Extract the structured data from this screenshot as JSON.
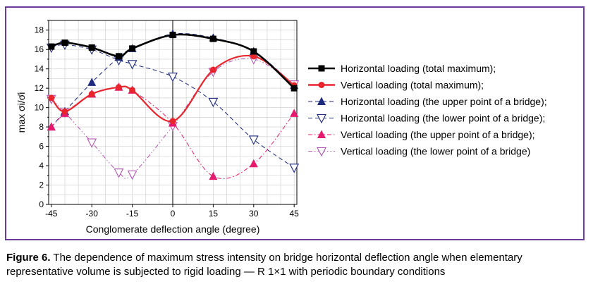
{
  "chart_data": {
    "type": "line",
    "xlabel": "Conglomerate deflection angle (degree)",
    "ylabel": "max σi/σ̄i",
    "xlim": [
      -46,
      46
    ],
    "ylim": [
      0,
      19
    ],
    "xticks": [
      -45,
      -30,
      -15,
      0,
      15,
      30,
      45
    ],
    "yticks": [
      0,
      2,
      4,
      6,
      8,
      10,
      12,
      14,
      16,
      18
    ],
    "grid": true,
    "legend_position": "right",
    "series": [
      {
        "name": "Horizontal loading (total maximum);",
        "color": "#000000",
        "marker": "square",
        "line": "solid",
        "x": [
          -45,
          -40,
          -30,
          -20,
          -15,
          0,
          15,
          30,
          45
        ],
        "y": [
          16.3,
          16.7,
          16.2,
          15.3,
          16.1,
          17.5,
          17.1,
          15.8,
          12.0
        ]
      },
      {
        "name": "Vertical loading (total maximum);",
        "color": "#e8242c",
        "marker": "circle",
        "line": "solid",
        "x": [
          -45,
          -40,
          -30,
          -20,
          -15,
          0,
          15,
          30,
          45
        ],
        "y": [
          11.0,
          9.6,
          11.4,
          12.1,
          11.8,
          8.6,
          13.9,
          15.3,
          12.3
        ]
      },
      {
        "name": "Horizontal loading (the upper point of a bridge);",
        "color": "#1e2a7e",
        "marker": "triangle-up",
        "line": "dashed",
        "x": [
          -45,
          -40,
          -30,
          -20,
          -15,
          0,
          15,
          30,
          45
        ],
        "y": [
          8.0,
          9.6,
          12.6,
          15.2,
          16.1,
          17.6,
          17.2,
          15.8,
          12.3
        ]
      },
      {
        "name": "Horizontal loading (the lower point of a bridge);",
        "color": "#1e2a7e",
        "marker": "triangle-down",
        "line": "dashed",
        "x": [
          -45,
          -40,
          -30,
          -20,
          -15,
          0,
          15,
          30,
          45
        ],
        "y": [
          16.2,
          16.5,
          16.0,
          14.9,
          14.5,
          13.2,
          10.6,
          6.7,
          3.8
        ]
      },
      {
        "name": "Vertical loading (the upper point of a bridge);",
        "color": "#e6196e",
        "marker": "triangle-up",
        "line": "dash-dot",
        "x": [
          -45,
          -40,
          -30,
          -20,
          -15,
          0,
          15,
          30,
          45
        ],
        "y": [
          8.0,
          9.4,
          11.4,
          12.1,
          11.8,
          8.4,
          2.9,
          4.2,
          9.4
        ]
      },
      {
        "name": "Vertical loading (the lower point of a bridge)",
        "color": "#b257b2",
        "marker": "triangle-down",
        "line": "dash-dot-dot",
        "x": [
          -45,
          -40,
          -30,
          -20,
          -15,
          0,
          15,
          30,
          45
        ],
        "y": [
          10.9,
          9.5,
          6.4,
          3.3,
          3.1,
          8.1,
          13.7,
          15.0,
          12.4
        ]
      }
    ]
  },
  "caption": {
    "label": "Figure 6.",
    "text": " The dependence of maximum stress intensity on bridge horizontal deflection angle when elementary representative volume is subjected to rigid loading — R 1×1 with periodic boundary conditions"
  }
}
